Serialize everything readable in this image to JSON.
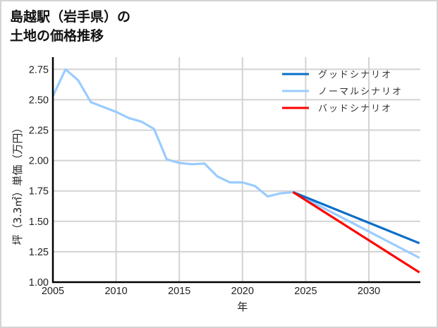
{
  "title": {
    "line1": "島越駅（岩手県）の",
    "line2": "土地の価格推移"
  },
  "colors": {
    "good": "#0a6ec8",
    "normal": "#99ccff",
    "bad": "#ff0000",
    "grid": "#d3d3d3",
    "axis": "#000000"
  },
  "chart_data": {
    "type": "line",
    "title": "島越駅（岩手県）の土地の価格推移",
    "xlabel": "年",
    "ylabel": "坪（3.3㎡）単価（万円）",
    "xlim": [
      2005,
      2034
    ],
    "ylim": [
      1.0,
      2.85
    ],
    "xticks": [
      2005,
      2010,
      2015,
      2020,
      2025,
      2030
    ],
    "xtick_labels": [
      "2005",
      "2010",
      "2015",
      "2020",
      "2025",
      "2030"
    ],
    "yticks": [
      1.0,
      1.25,
      1.5,
      1.75,
      2.0,
      2.25,
      2.5,
      2.75
    ],
    "ytick_labels": [
      "1.00",
      "1.25",
      "1.50",
      "1.75",
      "2.00",
      "2.25",
      "2.50",
      "2.75"
    ],
    "grid": true,
    "legend_position": "upper right",
    "series": [
      {
        "name": "グッドシナリオ",
        "color": "#0a6ec8",
        "x": [
          2024,
          2034
        ],
        "values": [
          1.74,
          1.32
        ]
      },
      {
        "name": "ノーマルシナリオ",
        "color": "#99ccff",
        "x": [
          2005,
          2006,
          2007,
          2008,
          2009,
          2010,
          2011,
          2012,
          2013,
          2014,
          2015,
          2016,
          2017,
          2018,
          2019,
          2020,
          2021,
          2022,
          2023,
          2024,
          2034
        ],
        "values": [
          2.53,
          2.75,
          2.66,
          2.48,
          2.44,
          2.4,
          2.35,
          2.32,
          2.26,
          2.01,
          1.98,
          1.97,
          1.975,
          1.87,
          1.82,
          1.82,
          1.79,
          1.705,
          1.73,
          1.74,
          1.2
        ]
      },
      {
        "name": "バッドシナリオ",
        "color": "#ff0000",
        "x": [
          2024,
          2034
        ],
        "values": [
          1.74,
          1.08
        ]
      }
    ]
  }
}
